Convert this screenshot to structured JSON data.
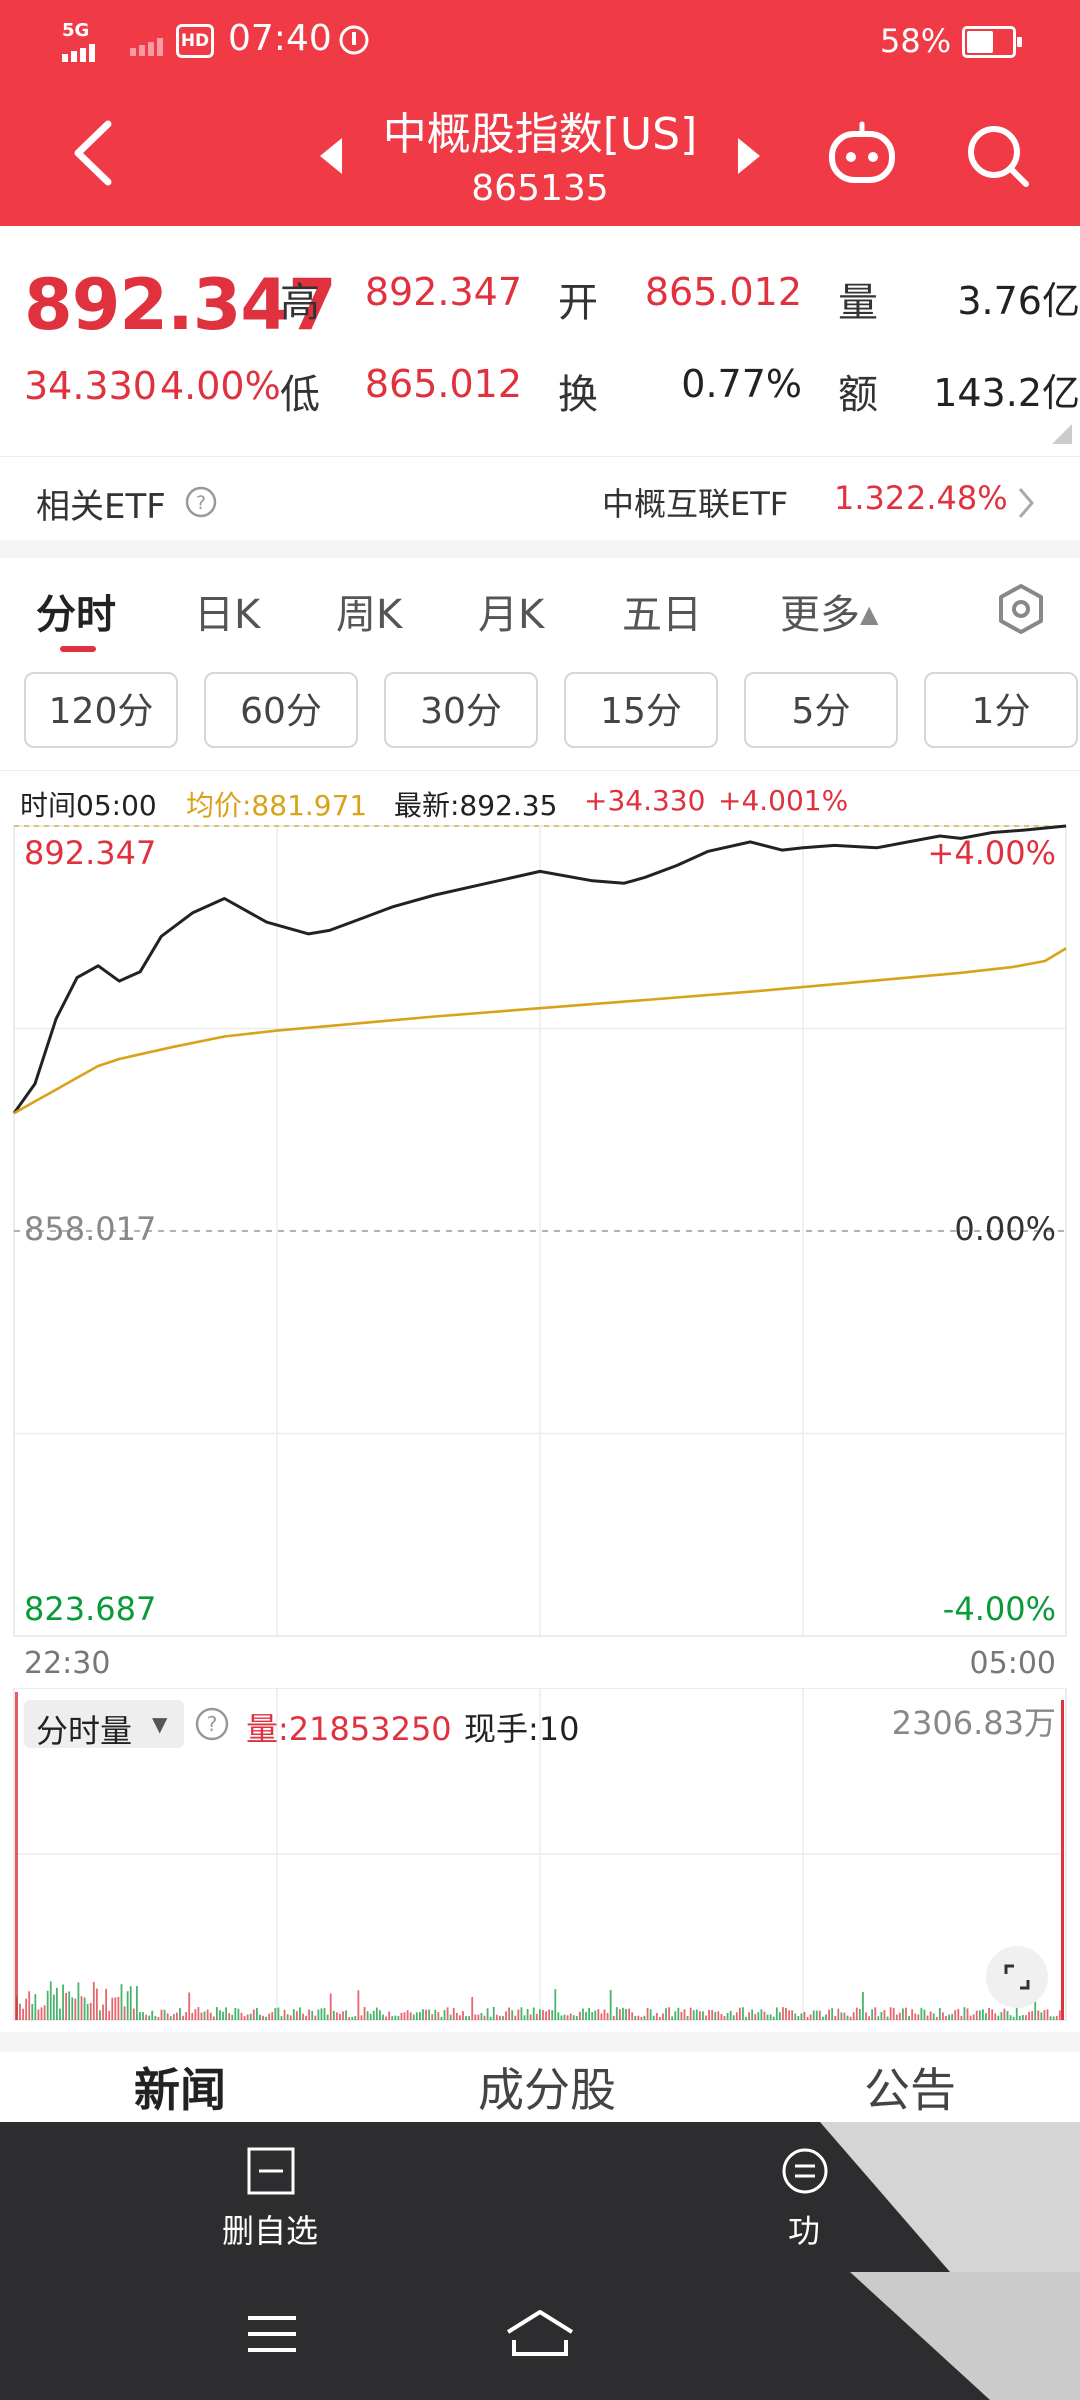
{
  "status_bar": {
    "network": "5G",
    "hd": "HD",
    "time": "07:40",
    "battery": "58%",
    "battery_level": 0.58
  },
  "header": {
    "title": "中概股指数[US]",
    "code": "865135"
  },
  "quote": {
    "price": "892.347",
    "change": "34.330",
    "change_pct": "4.00%",
    "high_label": "高",
    "high": "892.347",
    "low_label": "低",
    "low": "865.012",
    "open_label": "开",
    "open": "865.012",
    "turnover_label": "换",
    "turnover": "0.77%",
    "volume_label": "量",
    "volume": "3.76亿",
    "amount_label": "额",
    "amount": "143.2亿"
  },
  "etf": {
    "label": "相关ETF",
    "name": "中概互联ETF",
    "price": "1.32",
    "pct": "2.48%"
  },
  "tabs": [
    "分时",
    "日K",
    "周K",
    "月K",
    "五日",
    "更多"
  ],
  "periods": [
    "120分",
    "60分",
    "30分",
    "15分",
    "5分",
    "1分"
  ],
  "info": {
    "time": "时间05:00",
    "avg": "均价:881.971",
    "latest": "最新:892.35",
    "change": "+34.330",
    "pct": "+4.001%"
  },
  "chart": {
    "top_price": "892.347",
    "top_pct": "+4.00%",
    "mid_price": "858.017",
    "mid_pct": "0.00%",
    "bottom_price": "823.687",
    "bottom_pct": "-4.00%",
    "start_time": "22:30",
    "end_time": "05:00"
  },
  "volume_panel": {
    "selector": "分时量",
    "volume": "量:21853250",
    "current": "现手:10",
    "max": "2306.83万"
  },
  "content_tabs": [
    "新闻",
    "成分股",
    "公告"
  ],
  "actions": [
    {
      "label": "删自选",
      "icon": "minus-square-icon"
    },
    {
      "label": "功",
      "icon": "menu-circle-icon"
    }
  ],
  "nav": [
    "menu-icon",
    "home-icon",
    "back-icon"
  ],
  "colors": {
    "brand_red": "#f03a46",
    "up_red": "#e0323e",
    "down_green": "#0b9a3a",
    "avg_line": "#d9a21a",
    "price_line": "#222222"
  },
  "chart_data": {
    "type": "line",
    "x_range": [
      "22:30",
      "05:00"
    ],
    "ylim": [
      823.687,
      892.347
    ],
    "y_ticks": [
      "892.347",
      "858.017",
      "823.687"
    ],
    "y_right_ticks": [
      "+4.00%",
      "0.00%",
      "-4.00%"
    ],
    "x_ticks": [
      "22:30",
      "05:00"
    ],
    "series": [
      {
        "name": "",
        "color": "#222222",
        "x": [
          0,
          2,
          4,
          6,
          8,
          10,
          12,
          14,
          17,
          20,
          24,
          28,
          30,
          33,
          36,
          40,
          45,
          50,
          55,
          58,
          60,
          63,
          66,
          70,
          73,
          75,
          78,
          82,
          85,
          88,
          90,
          93,
          96,
          100
        ],
        "values": [
          868.0,
          870.5,
          876.0,
          879.5,
          880.5,
          879.2,
          880.0,
          883.0,
          885.0,
          886.2,
          884.2,
          883.2,
          883.5,
          884.5,
          885.5,
          886.5,
          887.5,
          888.5,
          887.7,
          887.5,
          888.0,
          889.0,
          890.2,
          891.0,
          890.3,
          890.5,
          890.7,
          890.5,
          891.0,
          891.5,
          891.3,
          891.8,
          892.0,
          892.35
        ]
      },
      {
        "name": "",
        "color": "#d9a21a",
        "x": [
          0,
          2,
          4,
          6,
          8,
          10,
          15,
          20,
          25,
          30,
          40,
          50,
          60,
          70,
          80,
          90,
          95,
          98,
          100
        ],
        "values": [
          868.0,
          869.0,
          870.0,
          871.0,
          872.0,
          872.6,
          873.6,
          874.5,
          875.0,
          875.4,
          876.2,
          876.9,
          877.6,
          878.3,
          879.1,
          879.9,
          880.4,
          880.9,
          881.97
        ]
      }
    ]
  }
}
